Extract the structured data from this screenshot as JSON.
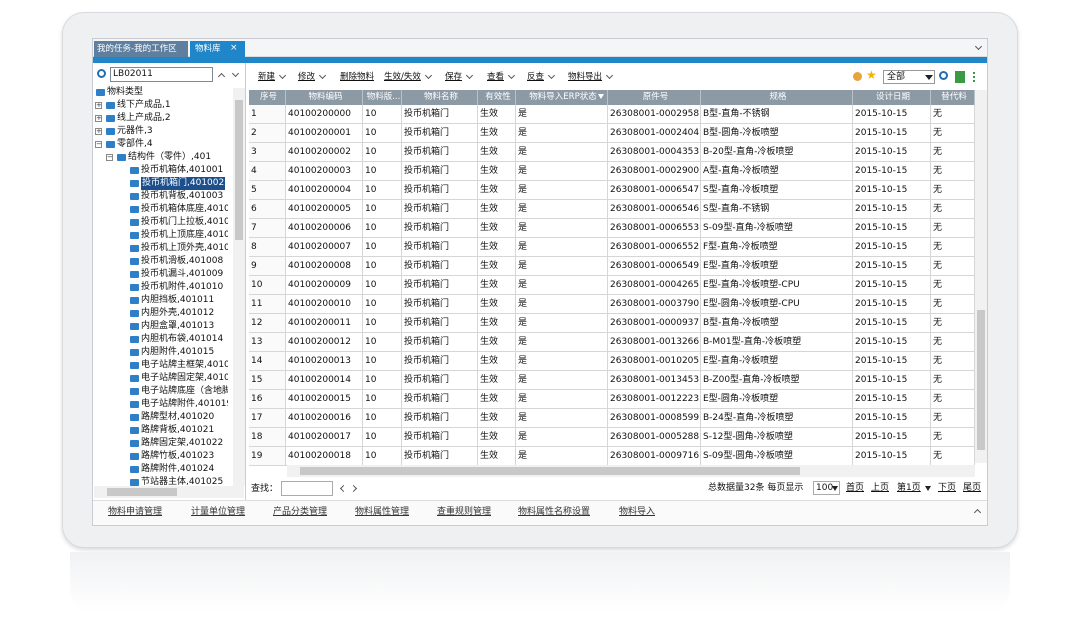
{
  "tabs": [
    "我的任务-我的工作区",
    "物料库"
  ],
  "search": "LB02011",
  "tree": {
    "label": "物料类型",
    "children": [
      {
        "label": "线下产成品,1",
        "collapsed": true
      },
      {
        "label": "线上产成品,2",
        "collapsed": true
      },
      {
        "label": "元器件,3",
        "collapsed": true
      },
      {
        "label": "零部件,4",
        "children": [
          {
            "label": "结构件（零件）,401",
            "children": [
              {
                "label": "投币机箱体,401001"
              },
              {
                "label": "投币机箱门,401002",
                "selected": true
              },
              {
                "label": "投币机背板,401003"
              },
              {
                "label": "投币机箱体底座,4010"
              },
              {
                "label": "投币机门上拉板,4010"
              },
              {
                "label": "投币机上顶底座,4010"
              },
              {
                "label": "投币机上顶外壳,4010"
              },
              {
                "label": "投币机滑板,401008"
              },
              {
                "label": "投币机漏斗,401009"
              },
              {
                "label": "投币机附件,401010"
              },
              {
                "label": "内胆挡板,401011"
              },
              {
                "label": "内胆外壳,401012"
              },
              {
                "label": "内胆盒罩,401013"
              },
              {
                "label": "内胆机布袋,401014"
              },
              {
                "label": "内胆附件,401015"
              },
              {
                "label": "电子站牌主框架,4010"
              },
              {
                "label": "电子站牌固定架,4010"
              },
              {
                "label": "电子站牌底座（含地脚"
              },
              {
                "label": "电子站牌附件,401019"
              },
              {
                "label": "路牌型材,401020"
              },
              {
                "label": "路牌背板,401021"
              },
              {
                "label": "路牌固定架,401022"
              },
              {
                "label": "路牌竹板,401023"
              },
              {
                "label": "路牌附件,401024"
              },
              {
                "label": "节站器主体,401025"
              }
            ]
          }
        ]
      }
    ]
  },
  "toolbar": [
    {
      "label": "新建",
      "menu": true
    },
    {
      "label": "修改",
      "menu": true
    },
    {
      "label": "删除物料",
      "menu": false
    },
    {
      "label": "生效/失效",
      "menu": true
    },
    {
      "label": "保存",
      "menu": true
    },
    {
      "label": "查看",
      "menu": true
    },
    {
      "label": "反查",
      "menu": true
    },
    {
      "label": "物料导出",
      "menu": true
    }
  ],
  "filter": "全部",
  "table": {
    "columns": [
      "序号",
      "物料编码",
      "物料版...",
      "物料名称",
      "有效性",
      "物料导入ERP状态",
      "原件号",
      "规格",
      "设计日期",
      "替代料"
    ],
    "rows": [
      [
        "1",
        "40100200000",
        "10",
        "投币机箱门",
        "生效",
        "是",
        "26308001-0002958",
        "B型-直角-不锈钢",
        "2015-10-15",
        "无"
      ],
      [
        "2",
        "40100200001",
        "10",
        "投币机箱门",
        "生效",
        "是",
        "26308001-0002404",
        "B型-圆角-冷板喷塑",
        "2015-10-15",
        "无"
      ],
      [
        "3",
        "40100200002",
        "10",
        "投币机箱门",
        "生效",
        "是",
        "26308001-0004353",
        "B-20型-直角-冷板喷塑",
        "2015-10-15",
        "无"
      ],
      [
        "4",
        "40100200003",
        "10",
        "投币机箱门",
        "生效",
        "是",
        "26308001-0002900",
        "A型-直角-冷板喷塑",
        "2015-10-15",
        "无"
      ],
      [
        "5",
        "40100200004",
        "10",
        "投币机箱门",
        "生效",
        "是",
        "26308001-0006547",
        "S型-直角-冷板喷塑",
        "2015-10-15",
        "无"
      ],
      [
        "6",
        "40100200005",
        "10",
        "投币机箱门",
        "生效",
        "是",
        "26308001-0006546",
        "S型-直角-不锈钢",
        "2015-10-15",
        "无"
      ],
      [
        "7",
        "40100200006",
        "10",
        "投币机箱门",
        "生效",
        "是",
        "26308001-0006553",
        "S-09型-直角-冷板喷塑",
        "2015-10-15",
        "无"
      ],
      [
        "8",
        "40100200007",
        "10",
        "投币机箱门",
        "生效",
        "是",
        "26308001-0006552",
        "F型-直角-冷板喷塑",
        "2015-10-15",
        "无"
      ],
      [
        "9",
        "40100200008",
        "10",
        "投币机箱门",
        "生效",
        "是",
        "26308001-0006549",
        "E型-直角-冷板喷塑",
        "2015-10-15",
        "无"
      ],
      [
        "10",
        "40100200009",
        "10",
        "投币机箱门",
        "生效",
        "是",
        "26308001-0004265",
        "E型-直角-冷板喷塑-CPU",
        "2015-10-15",
        "无"
      ],
      [
        "11",
        "40100200010",
        "10",
        "投币机箱门",
        "生效",
        "是",
        "26308001-0003790",
        "E型-圆角-冷板喷塑-CPU",
        "2015-10-15",
        "无"
      ],
      [
        "12",
        "40100200011",
        "10",
        "投币机箱门",
        "生效",
        "是",
        "26308001-0000937",
        "B型-直角-冷板喷塑",
        "2015-10-15",
        "无"
      ],
      [
        "13",
        "40100200012",
        "10",
        "投币机箱门",
        "生效",
        "是",
        "26308001-0013266",
        "B-M01型-直角-冷板喷塑",
        "2015-10-15",
        "无"
      ],
      [
        "14",
        "40100200013",
        "10",
        "投币机箱门",
        "生效",
        "是",
        "26308001-0010205",
        "E型-直角-冷板喷塑",
        "2015-10-15",
        "无"
      ],
      [
        "15",
        "40100200014",
        "10",
        "投币机箱门",
        "生效",
        "是",
        "26308001-0013453",
        "B-Z00型-直角-冷板喷塑",
        "2015-10-15",
        "无"
      ],
      [
        "16",
        "40100200015",
        "10",
        "投币机箱门",
        "生效",
        "是",
        "26308001-0012223",
        "E型-圆角-冷板喷塑",
        "2015-10-15",
        "无"
      ],
      [
        "17",
        "40100200016",
        "10",
        "投币机箱门",
        "生效",
        "是",
        "26308001-0008599",
        "B-24型-直角-冷板喷塑",
        "2015-10-15",
        "无"
      ],
      [
        "18",
        "40100200017",
        "10",
        "投币机箱门",
        "生效",
        "是",
        "26308001-0005288",
        "S-12型-圆角-冷板喷塑",
        "2015-10-15",
        "无"
      ],
      [
        "19",
        "40100200018",
        "10",
        "投币机箱门",
        "生效",
        "是",
        "26308001-0009716",
        "S-09型-圆角-冷板喷塑",
        "2015-10-15",
        "无"
      ]
    ]
  },
  "pager": {
    "find": "查找：",
    "total": "总数据量32条 每页显示",
    "size": "100",
    "first": "首页",
    "prev": "上页",
    "page": "第1页",
    "next": "下页",
    "last": "尾页"
  },
  "links": [
    "物料申请管理",
    "计量单位管理",
    "产品分类管理",
    "物料属性管理",
    "查重规则管理",
    "物料属性名称设置",
    "物料导入"
  ]
}
